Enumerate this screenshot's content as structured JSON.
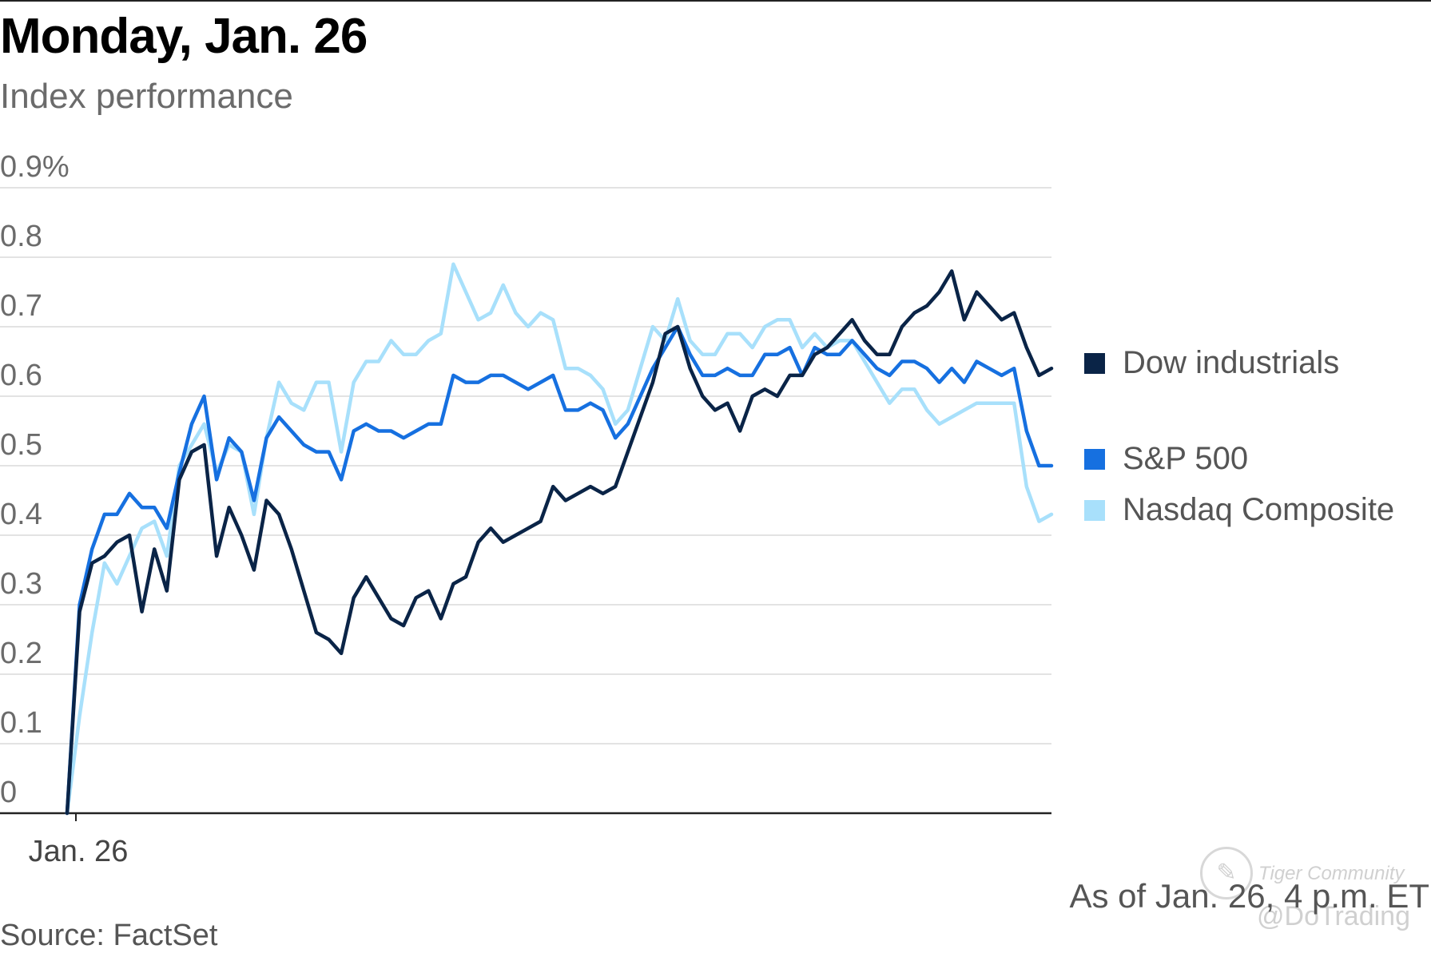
{
  "header": {
    "title": "Monday, Jan. 26",
    "subtitle": "Index performance"
  },
  "footer": {
    "as_of": "As of Jan. 26, 4 p.m. ET",
    "source": "Source: FactSet"
  },
  "watermark": {
    "line1": "Tiger Community",
    "line2": "@DoTrading",
    "icon": "tiger-logo-icon"
  },
  "colors": {
    "dow": "#0a2447",
    "sp500": "#1670e0",
    "nasdaq": "#a8e0fb",
    "grid": "#e3e3e3",
    "axis": "#222222"
  },
  "chart_data": {
    "type": "line",
    "title": "Monday, Jan. 26",
    "subtitle": "Index performance",
    "xlabel": "",
    "ylabel": "",
    "ylim": [
      0,
      0.9
    ],
    "yticks": [
      "0",
      "0.1",
      "0.2",
      "0.3",
      "0.4",
      "0.5",
      "0.6",
      "0.7",
      "0.8",
      "0.9%"
    ],
    "ytick_values": [
      0,
      0.1,
      0.2,
      0.3,
      0.4,
      0.5,
      0.6,
      0.7,
      0.8,
      0.9
    ],
    "xticks": [
      "Jan. 26"
    ],
    "grid": true,
    "legend_position": "right",
    "series": [
      {
        "name": "Dow industrials",
        "color": "#0a2447",
        "values": [
          0.0,
          0.29,
          0.36,
          0.37,
          0.39,
          0.4,
          0.29,
          0.38,
          0.32,
          0.48,
          0.52,
          0.53,
          0.37,
          0.44,
          0.4,
          0.35,
          0.45,
          0.43,
          0.38,
          0.32,
          0.26,
          0.25,
          0.23,
          0.31,
          0.34,
          0.31,
          0.28,
          0.27,
          0.31,
          0.32,
          0.28,
          0.33,
          0.34,
          0.39,
          0.41,
          0.39,
          0.4,
          0.41,
          0.42,
          0.47,
          0.45,
          0.46,
          0.47,
          0.46,
          0.47,
          0.52,
          0.57,
          0.62,
          0.69,
          0.7,
          0.64,
          0.6,
          0.58,
          0.59,
          0.55,
          0.6,
          0.61,
          0.6,
          0.63,
          0.63,
          0.66,
          0.67,
          0.69,
          0.71,
          0.68,
          0.66,
          0.66,
          0.7,
          0.72,
          0.73,
          0.75,
          0.78,
          0.71,
          0.75,
          0.73,
          0.71,
          0.72,
          0.67,
          0.63,
          0.64
        ]
      },
      {
        "name": "S&P 500",
        "color": "#1670e0",
        "values": [
          0.0,
          0.3,
          0.38,
          0.43,
          0.43,
          0.46,
          0.44,
          0.44,
          0.41,
          0.49,
          0.56,
          0.6,
          0.48,
          0.54,
          0.52,
          0.45,
          0.54,
          0.57,
          0.55,
          0.53,
          0.52,
          0.52,
          0.48,
          0.55,
          0.56,
          0.55,
          0.55,
          0.54,
          0.55,
          0.56,
          0.56,
          0.63,
          0.62,
          0.62,
          0.63,
          0.63,
          0.62,
          0.61,
          0.62,
          0.63,
          0.58,
          0.58,
          0.59,
          0.58,
          0.54,
          0.56,
          0.6,
          0.64,
          0.67,
          0.7,
          0.66,
          0.63,
          0.63,
          0.64,
          0.63,
          0.63,
          0.66,
          0.66,
          0.67,
          0.63,
          0.67,
          0.66,
          0.66,
          0.68,
          0.66,
          0.64,
          0.63,
          0.65,
          0.65,
          0.64,
          0.62,
          0.64,
          0.62,
          0.65,
          0.64,
          0.63,
          0.64,
          0.55,
          0.5,
          0.5
        ]
      },
      {
        "name": "Nasdaq Composite",
        "color": "#a8e0fb",
        "values": [
          0.0,
          0.14,
          0.26,
          0.36,
          0.33,
          0.37,
          0.41,
          0.42,
          0.37,
          0.5,
          0.53,
          0.56,
          0.49,
          0.53,
          0.52,
          0.43,
          0.54,
          0.62,
          0.59,
          0.58,
          0.62,
          0.62,
          0.52,
          0.62,
          0.65,
          0.65,
          0.68,
          0.66,
          0.66,
          0.68,
          0.69,
          0.79,
          0.75,
          0.71,
          0.72,
          0.76,
          0.72,
          0.7,
          0.72,
          0.71,
          0.64,
          0.64,
          0.63,
          0.61,
          0.56,
          0.58,
          0.64,
          0.7,
          0.68,
          0.74,
          0.68,
          0.66,
          0.66,
          0.69,
          0.69,
          0.67,
          0.7,
          0.71,
          0.71,
          0.67,
          0.69,
          0.67,
          0.68,
          0.68,
          0.65,
          0.62,
          0.59,
          0.61,
          0.61,
          0.58,
          0.56,
          0.57,
          0.58,
          0.59,
          0.59,
          0.59,
          0.59,
          0.47,
          0.42,
          0.43
        ]
      }
    ]
  }
}
